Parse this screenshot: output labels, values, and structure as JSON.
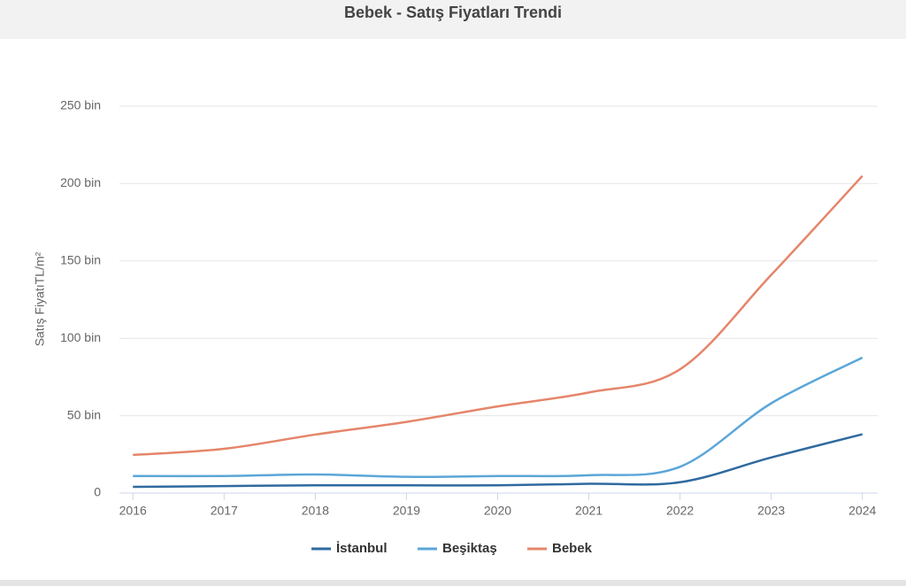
{
  "chart_data": {
    "type": "line",
    "title": "Bebek - Satış Fiyatları Trendi",
    "y_label": "Satış FiyatıTL/m²",
    "x": [
      2016,
      2017,
      2018,
      2019,
      2020,
      2021,
      2022,
      2023,
      2024
    ],
    "xlim": [
      2015.93,
      2024.09
    ],
    "xticks": [
      2016,
      2017,
      2018,
      2019,
      2020,
      2021,
      2022,
      2023,
      2024
    ],
    "ylim": [
      0,
      250
    ],
    "yticks": [
      0,
      {
        "value": 50,
        "label": "50 bin"
      },
      {
        "value": 100,
        "label": "100 bin"
      },
      {
        "value": 150,
        "label": "150 bin"
      },
      {
        "value": 200,
        "label": "200 bin"
      },
      {
        "value": 250,
        "label": "250 bin"
      }
    ],
    "grid": true,
    "series": [
      {
        "name": "İstanbul",
        "color": "#2f6a9f",
        "values": [
          4,
          4.5,
          5,
          5,
          5,
          6,
          7,
          23,
          38
        ]
      },
      {
        "name": "Beşiktaş",
        "color": "#5ba6d8",
        "values": [
          11,
          11,
          12,
          10.5,
          11,
          11.5,
          17,
          58,
          87.5
        ]
      },
      {
        "name": "Bebek",
        "color": "#e5856a",
        "values": [
          24.6,
          28.6,
          37.8,
          46,
          56,
          65,
          80,
          141,
          205
        ]
      }
    ]
  }
}
